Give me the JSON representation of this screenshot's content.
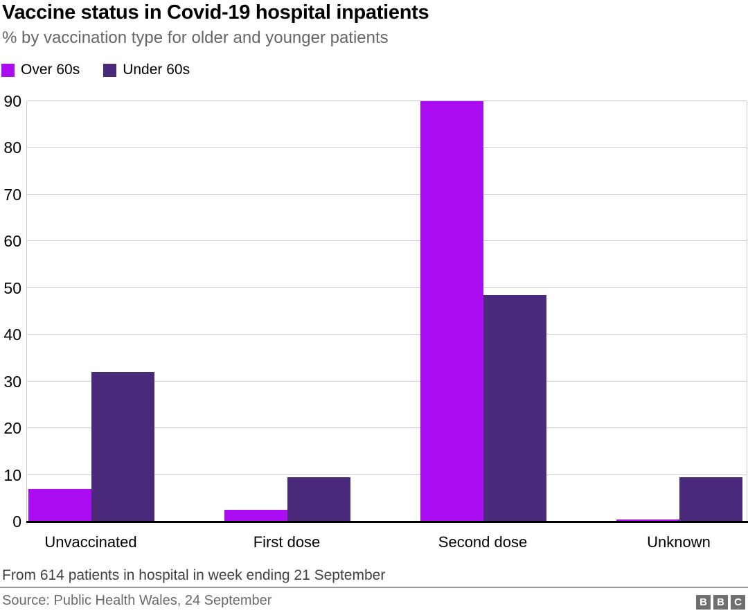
{
  "chart_data": {
    "type": "bar",
    "title": "Vaccine status in Covid-19 hospital inpatients",
    "subtitle": "% by vaccination type for older and younger patients",
    "categories": [
      "Unvaccinated",
      "First dose",
      "Second dose",
      "Unknown"
    ],
    "series": [
      {
        "name": "Over 60s",
        "color": "#ab0df2",
        "values": [
          7,
          2.5,
          90,
          0.5
        ]
      },
      {
        "name": "Under 60s",
        "color": "#4b2a7b",
        "values": [
          32,
          9.5,
          48.5,
          9.5
        ]
      }
    ],
    "ylabel": "",
    "ylim": [
      0,
      90
    ],
    "yticks": [
      0,
      10,
      20,
      30,
      40,
      50,
      60,
      70,
      80,
      90
    ],
    "grid": true,
    "legend_position": "top-left",
    "note": "From 614 patients in hospital in week ending 21 September",
    "source": "Source: Public Health Wales, 24 September"
  },
  "branding": {
    "logo_letters": [
      "B",
      "B",
      "C"
    ],
    "logo_color": "#6f6f6f"
  }
}
